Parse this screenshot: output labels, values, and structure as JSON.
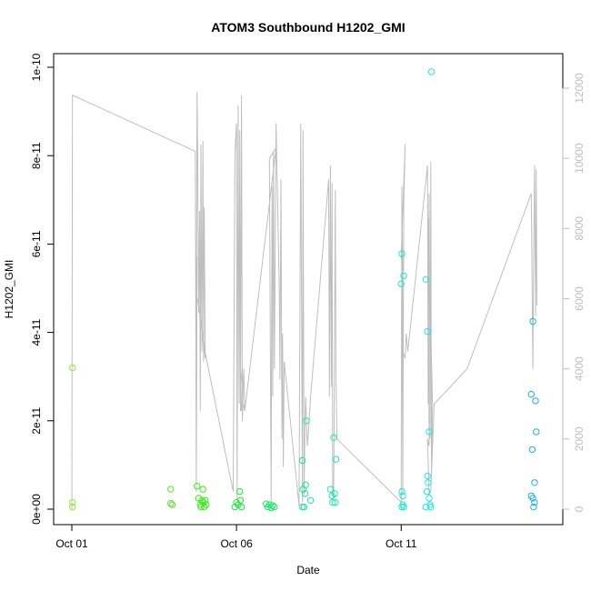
{
  "chart_data": {
    "type": "scatter",
    "title": "ATOM3 Southbound H1202_GMI",
    "xlabel": "Date",
    "ylabel": "H1202_GMI",
    "x_ticks": [
      {
        "value": 0,
        "label": "Oct 01"
      },
      {
        "value": 5,
        "label": "Oct 06"
      },
      {
        "value": 10,
        "label": "Oct 11"
      }
    ],
    "xlim": [
      0,
      14.3
    ],
    "y_ticks": [
      {
        "value": 0,
        "label": "0e+00"
      },
      {
        "value": 2e-11,
        "label": "2e-11"
      },
      {
        "value": 4e-11,
        "label": "4e-11"
      },
      {
        "value": 6e-11,
        "label": "6e-11"
      },
      {
        "value": 8e-11,
        "label": "8e-11"
      },
      {
        "value": 1e-10,
        "label": "1e-10"
      }
    ],
    "ylim": [
      0,
      1e-10
    ],
    "y2_ticks": [
      {
        "value": 0,
        "label": "0"
      },
      {
        "value": 2000,
        "label": "2000"
      },
      {
        "value": 4000,
        "label": "4000"
      },
      {
        "value": 6000,
        "label": "6000"
      },
      {
        "value": 8000,
        "label": "8000"
      },
      {
        "value": 10000,
        "label": "10000"
      },
      {
        "value": 12000,
        "label": "12000"
      }
    ],
    "y2lim": [
      0,
      12000
    ],
    "y2_color": "#bebebe",
    "altitude_line_color": "#bebebe",
    "grid": false,
    "points": [
      {
        "x": 0.02,
        "y": 3.2e-11,
        "color": "#8fe83a"
      },
      {
        "x": 0.02,
        "y": 1.5e-12,
        "color": "#8fe83a"
      },
      {
        "x": 0.02,
        "y": 5e-13,
        "color": "#8fe83a"
      },
      {
        "x": 3.0,
        "y": 4.5e-12,
        "color": "#55e81c"
      },
      {
        "x": 3.0,
        "y": 1.3e-12,
        "color": "#55e81c"
      },
      {
        "x": 3.05,
        "y": 1e-12,
        "color": "#55e81c"
      },
      {
        "x": 3.8,
        "y": 5.2e-12,
        "color": "#3ce81c"
      },
      {
        "x": 3.85,
        "y": 2.5e-12,
        "color": "#3ce81c"
      },
      {
        "x": 3.9,
        "y": 1e-12,
        "color": "#3ce81c"
      },
      {
        "x": 3.92,
        "y": 5e-13,
        "color": "#3ce81c"
      },
      {
        "x": 3.95,
        "y": 2e-12,
        "color": "#3ce81c"
      },
      {
        "x": 3.98,
        "y": 4.5e-12,
        "color": "#3ce81c"
      },
      {
        "x": 4.0,
        "y": 1.5e-12,
        "color": "#3ce81c"
      },
      {
        "x": 4.02,
        "y": 5e-13,
        "color": "#3ce81c"
      },
      {
        "x": 4.05,
        "y": 2e-12,
        "color": "#3ce81c"
      },
      {
        "x": 4.08,
        "y": 1e-12,
        "color": "#3ce81c"
      },
      {
        "x": 4.95,
        "y": 5e-13,
        "color": "#1ee83c"
      },
      {
        "x": 5.0,
        "y": 1.5e-12,
        "color": "#1ee83c"
      },
      {
        "x": 5.05,
        "y": 1e-12,
        "color": "#1ee83c"
      },
      {
        "x": 5.1,
        "y": 4e-12,
        "color": "#1ee83c"
      },
      {
        "x": 5.12,
        "y": 2e-12,
        "color": "#1ee83c"
      },
      {
        "x": 5.15,
        "y": 5e-13,
        "color": "#1ee83c"
      },
      {
        "x": 5.9,
        "y": 1.2e-12,
        "color": "#1ce865"
      },
      {
        "x": 5.95,
        "y": 5e-13,
        "color": "#1ce865"
      },
      {
        "x": 6.0,
        "y": 1e-12,
        "color": "#1ce865"
      },
      {
        "x": 6.05,
        "y": 3e-13,
        "color": "#1ce865"
      },
      {
        "x": 6.1,
        "y": 8e-13,
        "color": "#1ce865"
      },
      {
        "x": 6.15,
        "y": 5e-13,
        "color": "#1ce865"
      },
      {
        "x": 7.0,
        "y": 1.1e-11,
        "color": "#1ce89a"
      },
      {
        "x": 7.02,
        "y": 4.5e-12,
        "color": "#1ce89a"
      },
      {
        "x": 7.05,
        "y": 5e-13,
        "color": "#1ce89a"
      },
      {
        "x": 7.08,
        "y": 3.5e-12,
        "color": "#1ce89a"
      },
      {
        "x": 7.1,
        "y": 5.5e-12,
        "color": "#1ce89a"
      },
      {
        "x": 7.12,
        "y": 2e-11,
        "color": "#1ce89a"
      },
      {
        "x": 7.25,
        "y": 2e-12,
        "color": "#1ce89a"
      },
      {
        "x": 7.0,
        "y": 5e-13,
        "color": "#1ce89a"
      },
      {
        "x": 7.85,
        "y": 4.5e-12,
        "color": "#1ce8ae"
      },
      {
        "x": 7.9,
        "y": 3e-12,
        "color": "#1ce8ae"
      },
      {
        "x": 7.92,
        "y": 1.5e-12,
        "color": "#1ce8ae"
      },
      {
        "x": 7.95,
        "y": 1.62e-11,
        "color": "#1ce8ae"
      },
      {
        "x": 7.98,
        "y": 3.5e-12,
        "color": "#1ce8ae"
      },
      {
        "x": 8.0,
        "y": 1.5e-12,
        "color": "#1ce8ae"
      },
      {
        "x": 8.02,
        "y": 1.13e-11,
        "color": "#1ce8ae"
      },
      {
        "x": 10.0,
        "y": 5.1e-11,
        "color": "#1ce8d6"
      },
      {
        "x": 10.02,
        "y": 5.78e-11,
        "color": "#1ce8d6"
      },
      {
        "x": 10.08,
        "y": 5.28e-11,
        "color": "#1ce8d6"
      },
      {
        "x": 10.02,
        "y": 4e-12,
        "color": "#1ce8d6"
      },
      {
        "x": 10.05,
        "y": 3e-12,
        "color": "#1ce8d6"
      },
      {
        "x": 10.05,
        "y": 1e-12,
        "color": "#1ce8d6"
      },
      {
        "x": 10.02,
        "y": 5e-13,
        "color": "#1ce8d6"
      },
      {
        "x": 10.08,
        "y": 5e-13,
        "color": "#1ce8d6"
      },
      {
        "x": 10.75,
        "y": 5.2e-11,
        "color": "#1ce8e8"
      },
      {
        "x": 10.8,
        "y": 4.02e-11,
        "color": "#1ce8e8"
      },
      {
        "x": 10.85,
        "y": 1.75e-11,
        "color": "#1ce8e8"
      },
      {
        "x": 10.8,
        "y": 7.5e-12,
        "color": "#1ce8e8"
      },
      {
        "x": 10.82,
        "y": 6e-12,
        "color": "#1ce8e8"
      },
      {
        "x": 10.78,
        "y": 4e-12,
        "color": "#1ce8e8"
      },
      {
        "x": 10.85,
        "y": 2.5e-12,
        "color": "#1ce8e8"
      },
      {
        "x": 10.88,
        "y": 1e-12,
        "color": "#1ce8e8"
      },
      {
        "x": 10.75,
        "y": 5e-13,
        "color": "#1ce8e8"
      },
      {
        "x": 10.9,
        "y": 5e-13,
        "color": "#1ce8e8"
      },
      {
        "x": 10.92,
        "y": 9.9e-11,
        "color": "#1ce8e8"
      },
      {
        "x": 14.0,
        "y": 4.25e-11,
        "color": "#1cb0e8"
      },
      {
        "x": 13.95,
        "y": 2.6e-11,
        "color": "#1cb0e8"
      },
      {
        "x": 14.08,
        "y": 2.45e-11,
        "color": "#1cb0e8"
      },
      {
        "x": 14.1,
        "y": 1.75e-11,
        "color": "#1cb0e8"
      },
      {
        "x": 13.98,
        "y": 1.35e-11,
        "color": "#1cb0e8"
      },
      {
        "x": 14.05,
        "y": 6e-12,
        "color": "#1cb0e8"
      },
      {
        "x": 13.95,
        "y": 3e-12,
        "color": "#1cb0e8"
      },
      {
        "x": 14.0,
        "y": 2.5e-12,
        "color": "#1cb0e8"
      },
      {
        "x": 14.05,
        "y": 1.5e-12,
        "color": "#1cb0e8"
      },
      {
        "x": 14.02,
        "y": 5e-13,
        "color": "#1cb0e8"
      }
    ],
    "altitude_series": [
      [
        0.0,
        0
      ],
      [
        0.02,
        11800
      ],
      [
        3.75,
        10200
      ],
      [
        3.78,
        500
      ],
      [
        3.8,
        7200
      ],
      [
        3.78,
        4000
      ],
      [
        3.8,
        11900
      ],
      [
        3.82,
        10200
      ],
      [
        3.85,
        5600
      ],
      [
        3.88,
        8500
      ],
      [
        3.9,
        2800
      ],
      [
        3.92,
        10400
      ],
      [
        3.95,
        4500
      ],
      [
        3.98,
        10500
      ],
      [
        4.0,
        4200
      ],
      [
        4.02,
        8600
      ],
      [
        4.05,
        4500
      ],
      [
        3.82,
        6000
      ],
      [
        4.05,
        4300
      ],
      [
        4.02,
        4600
      ],
      [
        4.9,
        500
      ],
      [
        4.95,
        10100
      ],
      [
        5.0,
        11000
      ],
      [
        5.02,
        300
      ],
      [
        5.05,
        11500
      ],
      [
        5.08,
        3000
      ],
      [
        5.1,
        10800
      ],
      [
        5.12,
        2800
      ],
      [
        5.15,
        11800
      ],
      [
        5.18,
        2500
      ],
      [
        5.2,
        3400
      ],
      [
        5.12,
        4000
      ],
      [
        5.15,
        2800
      ],
      [
        5.18,
        3000
      ],
      [
        5.22,
        4000
      ],
      [
        5.25,
        2900
      ],
      [
        5.25,
        2800
      ],
      [
        5.2,
        3000
      ],
      [
        5.25,
        2800
      ],
      [
        6.2,
        10300
      ],
      [
        6.0,
        10000
      ],
      [
        6.05,
        200
      ],
      [
        6.08,
        9200
      ],
      [
        6.1,
        3200
      ],
      [
        6.12,
        10200
      ],
      [
        6.15,
        4000
      ],
      [
        6.2,
        11000
      ],
      [
        6.3,
        6200
      ],
      [
        6.32,
        3700
      ],
      [
        6.35,
        9400
      ],
      [
        6.38,
        2000
      ],
      [
        6.4,
        5000
      ],
      [
        6.42,
        1200
      ],
      [
        6.45,
        4200
      ],
      [
        6.9,
        100
      ],
      [
        6.95,
        11000
      ],
      [
        7.0,
        200
      ],
      [
        7.02,
        10800
      ],
      [
        7.05,
        400
      ],
      [
        7.08,
        2500
      ],
      [
        7.1,
        3200
      ],
      [
        7.15,
        1800
      ],
      [
        7.2,
        2400
      ],
      [
        7.25,
        3200
      ],
      [
        7.8,
        9400
      ],
      [
        7.82,
        3200
      ],
      [
        7.85,
        9800
      ],
      [
        7.88,
        3500
      ],
      [
        7.9,
        9300
      ],
      [
        7.92,
        500
      ],
      [
        7.95,
        300
      ],
      [
        8.0,
        9100
      ],
      [
        8.02,
        3800
      ],
      [
        8.05,
        2000
      ],
      [
        10.0,
        200
      ],
      [
        10.02,
        9200
      ],
      [
        10.05,
        400
      ],
      [
        10.08,
        8800
      ],
      [
        10.1,
        9600
      ],
      [
        10.12,
        10400
      ],
      [
        10.0,
        7200
      ],
      [
        10.05,
        6800
      ],
      [
        10.02,
        8600
      ],
      [
        10.05,
        4500
      ],
      [
        10.12,
        4300
      ],
      [
        10.15,
        5000
      ],
      [
        10.2,
        4500
      ],
      [
        10.8,
        9800
      ],
      [
        10.82,
        3000
      ],
      [
        10.85,
        9000
      ],
      [
        10.88,
        2000
      ],
      [
        10.9,
        9900
      ],
      [
        10.92,
        1000
      ],
      [
        10.95,
        3000
      ],
      [
        10.82,
        8300
      ],
      [
        10.85,
        1800
      ],
      [
        10.8,
        2000
      ],
      [
        10.85,
        400
      ],
      [
        10.9,
        500
      ],
      [
        11.0,
        3000
      ],
      [
        12.0,
        4000
      ],
      [
        13.95,
        9000
      ],
      [
        14.0,
        4000
      ],
      [
        14.02,
        7300
      ],
      [
        14.05,
        9800
      ],
      [
        14.08,
        5500
      ],
      [
        14.1,
        9700
      ],
      [
        14.12,
        5800
      ]
    ]
  }
}
